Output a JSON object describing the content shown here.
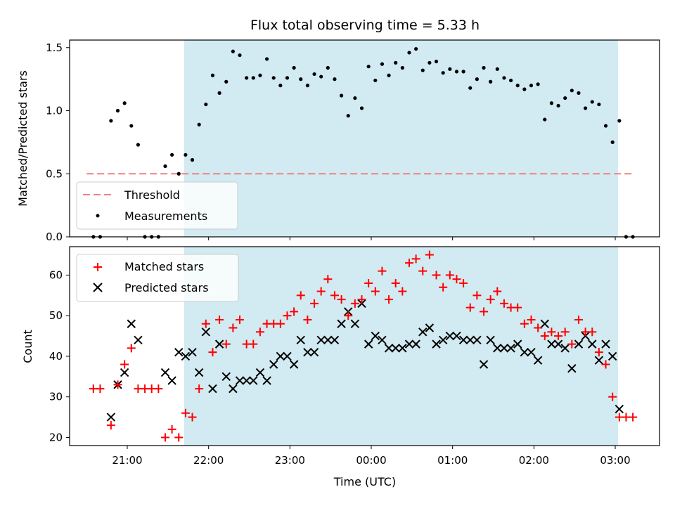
{
  "chart_data": [
    {
      "type": "scatter",
      "title": "Flux total observing time = 5.33 h",
      "ylabel": "Matched/Predicted stars",
      "xlabel": "",
      "ylim": [
        0,
        1.56
      ],
      "yticks": [
        "0.0",
        "0.5",
        "1.0",
        "1.5"
      ],
      "legend_position": "lower-left",
      "grid": false,
      "shaded_region": {
        "start": "21:42",
        "end": "03:02",
        "color": "#add8e6"
      },
      "threshold": {
        "name": "Threshold",
        "value": 0.5,
        "x_start": "20:30",
        "x_end": "03:12",
        "color": "#f08080"
      },
      "series": [
        {
          "name": "Measurements",
          "color": "#000000",
          "points": [
            [
              "20:35",
              0
            ],
            [
              "20:40",
              0
            ],
            [
              "20:48",
              0.92
            ],
            [
              "20:53",
              1.0
            ],
            [
              "20:58",
              1.06
            ],
            [
              "21:03",
              0.88
            ],
            [
              "21:08",
              0.73
            ],
            [
              "21:13",
              0
            ],
            [
              "21:18",
              0
            ],
            [
              "21:23",
              0
            ],
            [
              "21:28",
              0.56
            ],
            [
              "21:33",
              0.65
            ],
            [
              "21:38",
              0.5
            ],
            [
              "21:43",
              0.65
            ],
            [
              "21:48",
              0.61
            ],
            [
              "21:53",
              0.89
            ],
            [
              "21:58",
              1.05
            ],
            [
              "22:03",
              1.28
            ],
            [
              "22:08",
              1.14
            ],
            [
              "22:13",
              1.23
            ],
            [
              "22:18",
              1.47
            ],
            [
              "22:23",
              1.44
            ],
            [
              "22:28",
              1.26
            ],
            [
              "22:33",
              1.26
            ],
            [
              "22:38",
              1.28
            ],
            [
              "22:43",
              1.41
            ],
            [
              "22:48",
              1.26
            ],
            [
              "22:53",
              1.2
            ],
            [
              "22:58",
              1.26
            ],
            [
              "23:03",
              1.34
            ],
            [
              "23:08",
              1.25
            ],
            [
              "23:13",
              1.2
            ],
            [
              "23:18",
              1.29
            ],
            [
              "23:23",
              1.27
            ],
            [
              "23:28",
              1.34
            ],
            [
              "23:33",
              1.25
            ],
            [
              "23:38",
              1.12
            ],
            [
              "23:43",
              0.96
            ],
            [
              "23:48",
              1.1
            ],
            [
              "23:53",
              1.02
            ],
            [
              "23:58",
              1.35
            ],
            [
              "00:03",
              1.24
            ],
            [
              "00:08",
              1.37
            ],
            [
              "00:13",
              1.28
            ],
            [
              "00:18",
              1.38
            ],
            [
              "00:23",
              1.34
            ],
            [
              "00:28",
              1.46
            ],
            [
              "00:33",
              1.49
            ],
            [
              "00:38",
              1.32
            ],
            [
              "00:43",
              1.38
            ],
            [
              "00:48",
              1.39
            ],
            [
              "00:53",
              1.3
            ],
            [
              "00:58",
              1.33
            ],
            [
              "01:03",
              1.31
            ],
            [
              "01:08",
              1.31
            ],
            [
              "01:13",
              1.18
            ],
            [
              "01:18",
              1.25
            ],
            [
              "01:23",
              1.34
            ],
            [
              "01:28",
              1.23
            ],
            [
              "01:33",
              1.33
            ],
            [
              "01:38",
              1.26
            ],
            [
              "01:43",
              1.24
            ],
            [
              "01:48",
              1.2
            ],
            [
              "01:53",
              1.17
            ],
            [
              "01:58",
              1.2
            ],
            [
              "02:03",
              1.21
            ],
            [
              "02:08",
              0.93
            ],
            [
              "02:13",
              1.06
            ],
            [
              "02:18",
              1.04
            ],
            [
              "02:23",
              1.1
            ],
            [
              "02:28",
              1.16
            ],
            [
              "02:33",
              1.14
            ],
            [
              "02:38",
              1.02
            ],
            [
              "02:43",
              1.07
            ],
            [
              "02:48",
              1.05
            ],
            [
              "02:53",
              0.88
            ],
            [
              "02:58",
              0.75
            ],
            [
              "03:03",
              0.92
            ],
            [
              "03:08",
              0
            ],
            [
              "03:13",
              0
            ]
          ]
        }
      ]
    },
    {
      "type": "scatter",
      "title": "",
      "xlabel": "Time (UTC)",
      "ylabel": "Count",
      "ylim": [
        18,
        67
      ],
      "yticks": [
        "20",
        "30",
        "40",
        "50",
        "60"
      ],
      "xticks": [
        "21:00",
        "22:00",
        "23:00",
        "00:00",
        "01:00",
        "02:00",
        "03:00"
      ],
      "legend_position": "upper-left",
      "grid": false,
      "shaded_region": {
        "start": "21:42",
        "end": "03:02",
        "color": "#add8e6"
      },
      "series": [
        {
          "name": "Matched stars",
          "marker": "+",
          "color": "#ff0000",
          "points": [
            [
              "20:35",
              32
            ],
            [
              "20:40",
              32
            ],
            [
              "20:48",
              23
            ],
            [
              "20:53",
              33
            ],
            [
              "20:58",
              38
            ],
            [
              "21:03",
              42
            ],
            [
              "21:08",
              32
            ],
            [
              "21:13",
              32
            ],
            [
              "21:18",
              32
            ],
            [
              "21:23",
              32
            ],
            [
              "21:28",
              20
            ],
            [
              "21:33",
              22
            ],
            [
              "21:38",
              20
            ],
            [
              "21:43",
              26
            ],
            [
              "21:48",
              25
            ],
            [
              "21:53",
              32
            ],
            [
              "21:58",
              48
            ],
            [
              "22:03",
              41
            ],
            [
              "22:08",
              49
            ],
            [
              "22:13",
              43
            ],
            [
              "22:18",
              47
            ],
            [
              "22:23",
              49
            ],
            [
              "22:28",
              43
            ],
            [
              "22:33",
              43
            ],
            [
              "22:38",
              46
            ],
            [
              "22:43",
              48
            ],
            [
              "22:48",
              48
            ],
            [
              "22:53",
              48
            ],
            [
              "22:58",
              50
            ],
            [
              "23:03",
              51
            ],
            [
              "23:08",
              55
            ],
            [
              "23:13",
              49
            ],
            [
              "23:18",
              53
            ],
            [
              "23:23",
              56
            ],
            [
              "23:28",
              59
            ],
            [
              "23:33",
              55
            ],
            [
              "23:38",
              54
            ],
            [
              "23:43",
              50
            ],
            [
              "23:48",
              53
            ],
            [
              "23:53",
              54
            ],
            [
              "23:58",
              58
            ],
            [
              "00:03",
              56
            ],
            [
              "00:08",
              61
            ],
            [
              "00:13",
              54
            ],
            [
              "00:18",
              58
            ],
            [
              "00:23",
              56
            ],
            [
              "00:28",
              63
            ],
            [
              "00:33",
              64
            ],
            [
              "00:38",
              61
            ],
            [
              "00:43",
              65
            ],
            [
              "00:48",
              60
            ],
            [
              "00:53",
              57
            ],
            [
              "00:58",
              60
            ],
            [
              "01:03",
              59
            ],
            [
              "01:08",
              58
            ],
            [
              "01:13",
              52
            ],
            [
              "01:18",
              55
            ],
            [
              "01:23",
              51
            ],
            [
              "01:28",
              54
            ],
            [
              "01:33",
              56
            ],
            [
              "01:38",
              53
            ],
            [
              "01:43",
              52
            ],
            [
              "01:48",
              52
            ],
            [
              "01:53",
              48
            ],
            [
              "01:58",
              49
            ],
            [
              "02:03",
              47
            ],
            [
              "02:08",
              45
            ],
            [
              "02:13",
              46
            ],
            [
              "02:18",
              45
            ],
            [
              "02:23",
              46
            ],
            [
              "02:28",
              43
            ],
            [
              "02:33",
              49
            ],
            [
              "02:38",
              46
            ],
            [
              "02:43",
              46
            ],
            [
              "02:48",
              41
            ],
            [
              "02:53",
              38
            ],
            [
              "02:58",
              30
            ],
            [
              "03:03",
              25
            ],
            [
              "03:08",
              25
            ],
            [
              "03:13",
              25
            ]
          ]
        },
        {
          "name": "Predicted stars",
          "marker": "x",
          "color": "#000000",
          "points": [
            [
              "20:48",
              25
            ],
            [
              "20:53",
              33
            ],
            [
              "20:58",
              36
            ],
            [
              "21:03",
              48
            ],
            [
              "21:08",
              44
            ],
            [
              "21:28",
              36
            ],
            [
              "21:33",
              34
            ],
            [
              "21:38",
              41
            ],
            [
              "21:43",
              40
            ],
            [
              "21:48",
              41
            ],
            [
              "21:53",
              36
            ],
            [
              "21:58",
              46
            ],
            [
              "22:03",
              32
            ],
            [
              "22:08",
              43
            ],
            [
              "22:13",
              35
            ],
            [
              "22:18",
              32
            ],
            [
              "22:23",
              34
            ],
            [
              "22:28",
              34
            ],
            [
              "22:33",
              34
            ],
            [
              "22:38",
              36
            ],
            [
              "22:43",
              34
            ],
            [
              "22:48",
              38
            ],
            [
              "22:53",
              40
            ],
            [
              "22:58",
              40
            ],
            [
              "23:03",
              38
            ],
            [
              "23:08",
              44
            ],
            [
              "23:13",
              41
            ],
            [
              "23:18",
              41
            ],
            [
              "23:23",
              44
            ],
            [
              "23:28",
              44
            ],
            [
              "23:33",
              44
            ],
            [
              "23:38",
              48
            ],
            [
              "23:43",
              51
            ],
            [
              "23:48",
              48
            ],
            [
              "23:53",
              53
            ],
            [
              "23:58",
              43
            ],
            [
              "00:03",
              45
            ],
            [
              "00:08",
              44
            ],
            [
              "00:13",
              42
            ],
            [
              "00:18",
              42
            ],
            [
              "00:23",
              42
            ],
            [
              "00:28",
              43
            ],
            [
              "00:33",
              43
            ],
            [
              "00:38",
              46
            ],
            [
              "00:43",
              47
            ],
            [
              "00:48",
              43
            ],
            [
              "00:53",
              44
            ],
            [
              "00:58",
              45
            ],
            [
              "01:03",
              45
            ],
            [
              "01:08",
              44
            ],
            [
              "01:13",
              44
            ],
            [
              "01:18",
              44
            ],
            [
              "01:23",
              38
            ],
            [
              "01:28",
              44
            ],
            [
              "01:33",
              42
            ],
            [
              "01:38",
              42
            ],
            [
              "01:43",
              42
            ],
            [
              "01:48",
              43
            ],
            [
              "01:53",
              41
            ],
            [
              "01:58",
              41
            ],
            [
              "02:03",
              39
            ],
            [
              "02:08",
              48
            ],
            [
              "02:13",
              43
            ],
            [
              "02:18",
              43
            ],
            [
              "02:23",
              42
            ],
            [
              "02:28",
              37
            ],
            [
              "02:33",
              43
            ],
            [
              "02:38",
              45
            ],
            [
              "02:43",
              43
            ],
            [
              "02:48",
              39
            ],
            [
              "02:53",
              43
            ],
            [
              "02:58",
              40
            ],
            [
              "03:03",
              27
            ]
          ]
        }
      ]
    }
  ]
}
